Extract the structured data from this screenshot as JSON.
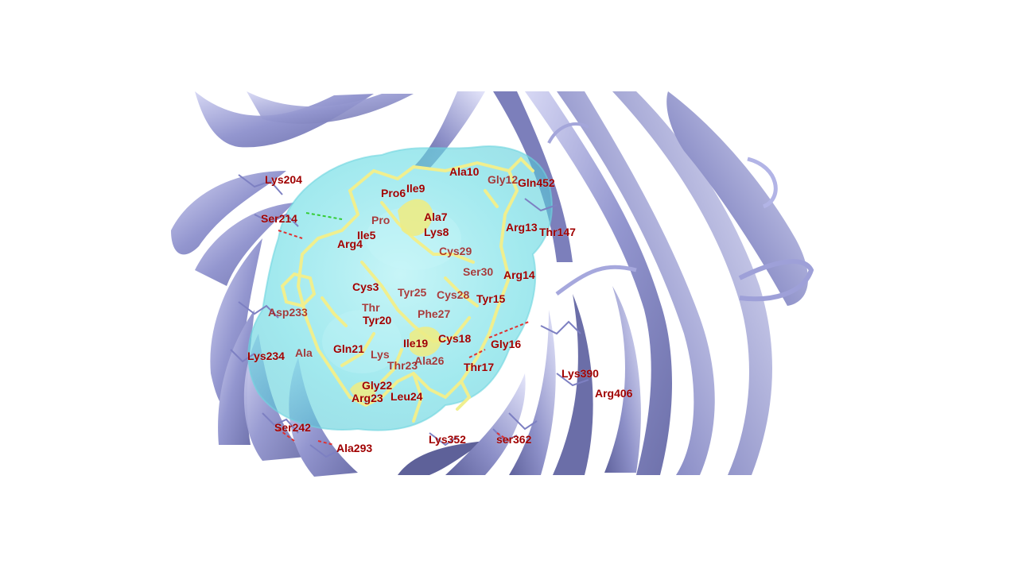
{
  "colors": {
    "background": "#ffffff",
    "ribbon": "#8e91c9",
    "ribbon_light": "#c9cbef",
    "ribbon_edge": "#5d6099",
    "surface": "#7fe3ea",
    "ligand": "#f0ef8e",
    "label": "#a00000",
    "hbond_red": "#e03030",
    "hbond_green": "#33cc33"
  },
  "labels": [
    {
      "id": "lys204",
      "text": "Lys204"
    },
    {
      "id": "ser214",
      "text": "Ser214"
    },
    {
      "id": "pro6",
      "text": "Pro6"
    },
    {
      "id": "ile9",
      "text": "Ile9"
    },
    {
      "id": "ala10",
      "text": "Ala10"
    },
    {
      "id": "gly12",
      "text": "Gly12"
    },
    {
      "id": "gln452",
      "text": "Gln452"
    },
    {
      "id": "pro-b",
      "text": "Pro"
    },
    {
      "id": "ala7",
      "text": "Ala7"
    },
    {
      "id": "ile5",
      "text": "Ile5"
    },
    {
      "id": "lys8",
      "text": "Lys8"
    },
    {
      "id": "arg13",
      "text": "Arg13"
    },
    {
      "id": "thr147",
      "text": "Thr147"
    },
    {
      "id": "arg4",
      "text": "Arg4"
    },
    {
      "id": "cys29",
      "text": "Cys29"
    },
    {
      "id": "ser30",
      "text": "Ser30"
    },
    {
      "id": "arg14",
      "text": "Arg14"
    },
    {
      "id": "cys3",
      "text": "Cys3"
    },
    {
      "id": "tyr25",
      "text": "Tyr25"
    },
    {
      "id": "cys28",
      "text": "Cys28"
    },
    {
      "id": "tyr15",
      "text": "Tyr15"
    },
    {
      "id": "thr2",
      "text": "Thr"
    },
    {
      "id": "asp233",
      "text": "Asp233"
    },
    {
      "id": "tyr20",
      "text": "Tyr20"
    },
    {
      "id": "phe27",
      "text": "Phe27"
    },
    {
      "id": "cys18",
      "text": "Cys18"
    },
    {
      "id": "gly16",
      "text": "Gly16"
    },
    {
      "id": "ile19",
      "text": "Ile19"
    },
    {
      "id": "gln21",
      "text": "Gln21"
    },
    {
      "id": "lys1",
      "text": "Lys"
    },
    {
      "id": "ala1",
      "text": "Ala"
    },
    {
      "id": "lys234",
      "text": "Lys234"
    },
    {
      "id": "ala26",
      "text": "Ala26"
    },
    {
      "id": "thr23",
      "text": "Thr23"
    },
    {
      "id": "thr17",
      "text": "Thr17"
    },
    {
      "id": "lys390",
      "text": "Lys390"
    },
    {
      "id": "arg406",
      "text": "Arg406"
    },
    {
      "id": "gly22",
      "text": "Gly22"
    },
    {
      "id": "arg23",
      "text": "Arg23"
    },
    {
      "id": "leu24",
      "text": "Leu24"
    },
    {
      "id": "ser242",
      "text": "Ser242"
    },
    {
      "id": "lys352",
      "text": "Lys352"
    },
    {
      "id": "ser362",
      "text": "ser362"
    },
    {
      "id": "ala293",
      "text": "Ala293"
    }
  ]
}
